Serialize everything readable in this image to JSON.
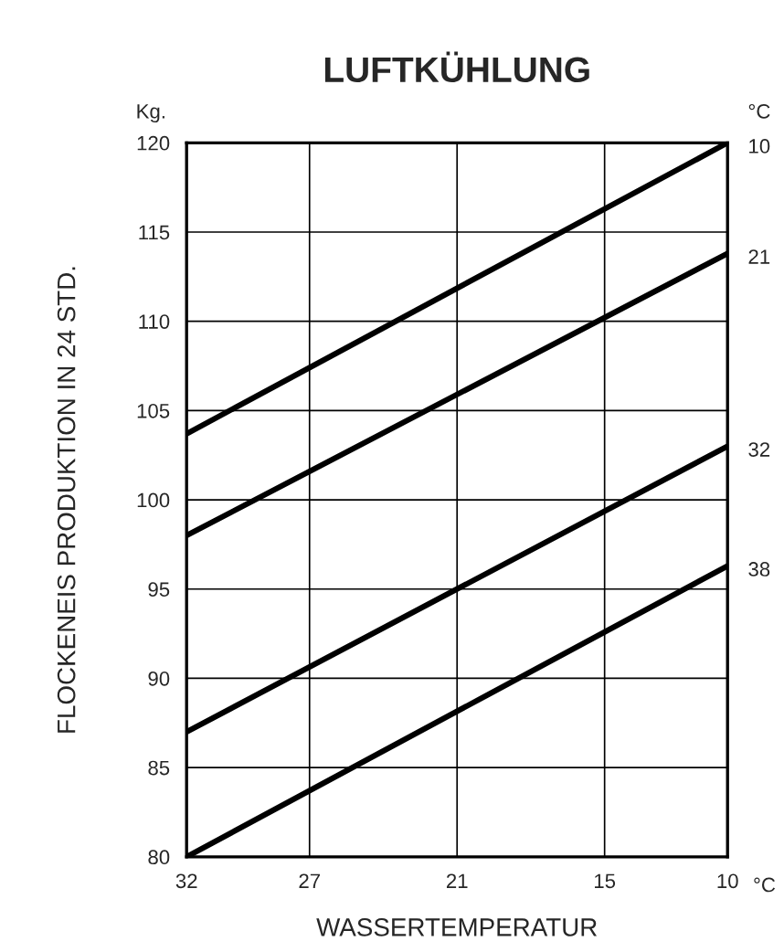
{
  "chart_data": {
    "type": "line",
    "title": "LUFTKÜHLUNG",
    "xlabel": "WASSERTEMPERATUR",
    "ylabel": "FLOCKENEIS PRODUKTION IN 24 STD.",
    "legend_title": "°C",
    "annotations": [
      "Kg.",
      "°C"
    ],
    "x": [
      32,
      10
    ],
    "series": [
      {
        "name": "10",
        "color": "#000000",
        "values": [
          103.7,
          120
        ]
      },
      {
        "name": "21",
        "color": "#000000",
        "values": [
          98,
          113.8
        ]
      },
      {
        "name": "32",
        "color": "#000000",
        "values": [
          87,
          103
        ]
      },
      {
        "name": "38",
        "color": "#000000",
        "values": [
          80,
          96.3
        ]
      }
    ],
    "xlim": [
      32,
      10
    ],
    "xticks": [
      32,
      27,
      21,
      15,
      10
    ],
    "ylim": [
      80,
      120
    ],
    "yticks": [
      80,
      85,
      90,
      95,
      100,
      105,
      110,
      115,
      120
    ],
    "grid": true,
    "line_style": "solid",
    "marker": "none"
  }
}
